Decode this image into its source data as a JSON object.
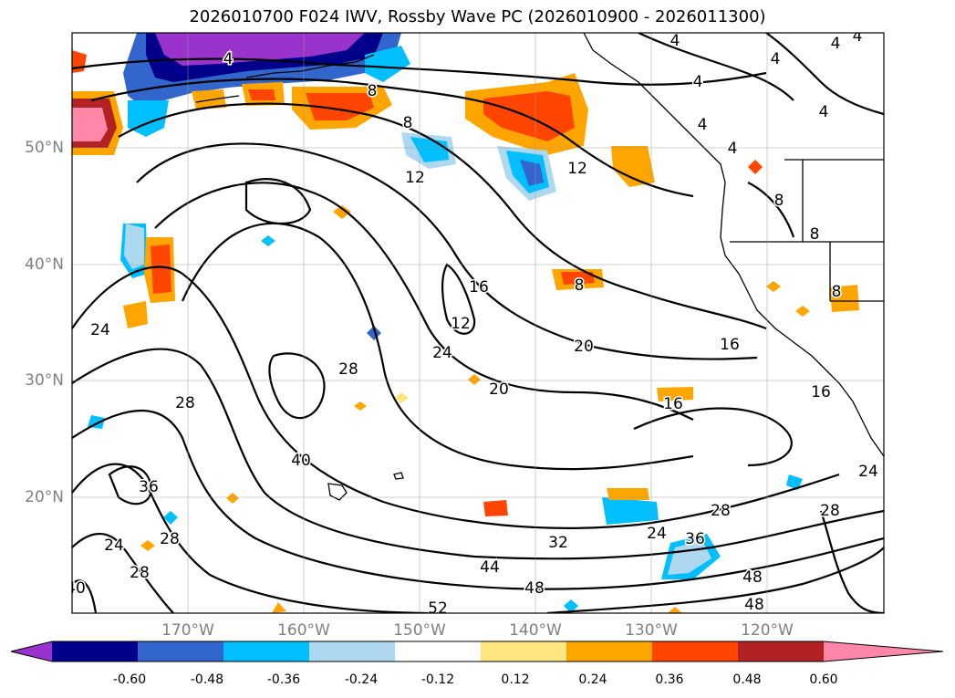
{
  "title": "2026010700 F024 IWV, Rossby Wave PC (2026010900 - 2026011300)",
  "lat_labels": [
    "50°N",
    "40°N",
    "30°N",
    "20°N"
  ],
  "lon_labels": [
    "170°W",
    "160°W",
    "150°W",
    "140°W",
    "130°W",
    "120°W"
  ],
  "colorbar": {
    "ticks": [
      "-0.60",
      "-0.48",
      "-0.36",
      "-0.24",
      "-0.12",
      "0.12",
      "0.24",
      "0.36",
      "0.48",
      "0.60"
    ],
    "colors": [
      "#9933cc",
      "#00008b",
      "#3366cc",
      "#00bfff",
      "#add8f0",
      "#ffffff",
      "#ffe680",
      "#ffa500",
      "#ff4500",
      "#b22222",
      "#ff88aa"
    ]
  },
  "contour_labels": [
    "4",
    "4",
    "4",
    "4",
    "4",
    "4",
    "4",
    "4",
    "4",
    "8",
    "8",
    "8",
    "8",
    "8",
    "8",
    "12",
    "12",
    "12",
    "16",
    "16",
    "16",
    "16",
    "20",
    "20",
    "24",
    "24",
    "24",
    "24",
    "24",
    "28",
    "28",
    "28",
    "28",
    "28",
    "28",
    "32",
    "36",
    "36",
    "40",
    "40",
    "44",
    "48",
    "48",
    "48",
    "52"
  ]
}
